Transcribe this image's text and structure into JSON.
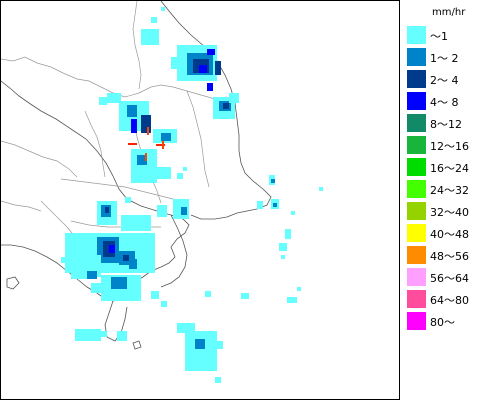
{
  "legend": {
    "unit": "mm/hr",
    "items": [
      {
        "label": "～1",
        "color": "#66ffff"
      },
      {
        "label": "1～ 2",
        "color": "#0083c8"
      },
      {
        "label": "2～ 4",
        "color": "#003a8c"
      },
      {
        "label": "4～ 8",
        "color": "#0000ff"
      },
      {
        "label": "8～12",
        "color": "#118a68"
      },
      {
        "label": "12～16",
        "color": "#19b43a"
      },
      {
        "label": "16～24",
        "color": "#00dc00"
      },
      {
        "label": "24～32",
        "color": "#44ff00"
      },
      {
        "label": "32～40",
        "color": "#94d200"
      },
      {
        "label": "40～48",
        "color": "#ffff00"
      },
      {
        "label": "48～56",
        "color": "#ff8c00"
      },
      {
        "label": "56～64",
        "color": "#ffa0ff"
      },
      {
        "label": "64～80",
        "color": "#ff4c9c"
      },
      {
        "label": "80～",
        "color": "#ff00ff"
      }
    ]
  },
  "map": {
    "land_fill": "#ffffff",
    "sea_fill": "#ffffff",
    "coast_color": "#555555",
    "border_color": "#9a9a9a"
  }
}
